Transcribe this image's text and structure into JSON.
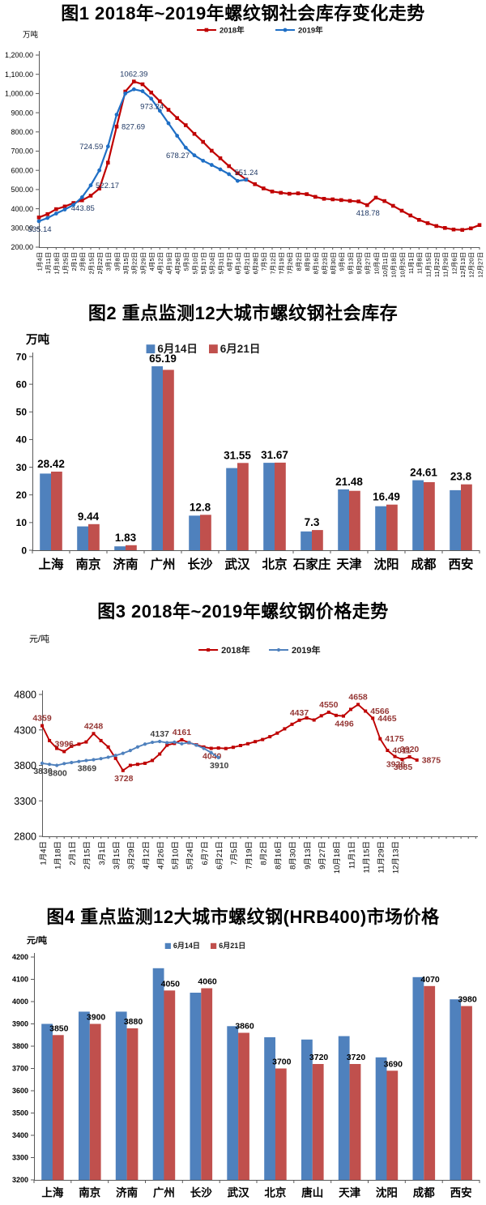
{
  "chart_data": [
    {
      "name": "inventory-trend",
      "type": "line",
      "title": "图1 2018年~2019年螺纹钢社会库存变化走势",
      "unit": "万吨",
      "legend_position": "top",
      "ylim": [
        200,
        1200
      ],
      "ytick_labels": [
        "200.00",
        "300.00",
        "400.00",
        "500.00",
        "600.00",
        "700.00",
        "800.00",
        "900.00",
        "1,000.00",
        "1,100.00",
        "1,200.00"
      ],
      "n_points": 52,
      "label_stride": 1,
      "x_labels": [
        "1月4日",
        "1月11日",
        "1月18日",
        "1月25日",
        "2月1日",
        "2月8日",
        "2月15日",
        "2月22日",
        "3月1日",
        "3月8日",
        "3月15日",
        "3月22日",
        "3月29日",
        "4月5日",
        "4月12日",
        "4月19日",
        "4月26日",
        "5月3日",
        "5月10日",
        "5月17日",
        "5月24日",
        "5月31日",
        "6月7日",
        "6月14日",
        "6月21日",
        "6月28日",
        "7月5日",
        "7月12日",
        "7月19日",
        "7月26日",
        "8月2日",
        "8月9日",
        "8月16日",
        "8月23日",
        "8月30日",
        "9月6日",
        "9月13日",
        "9月20日",
        "9月27日",
        "10月4日",
        "10月11日",
        "10月18日",
        "10月25日",
        "11月1日",
        "11月8日",
        "11月15日",
        "11月22日",
        "11月29日",
        "12月6日",
        "12月13日",
        "12月20日",
        "12月27日"
      ],
      "series": [
        {
          "name": "2018年",
          "color": "#C00000",
          "marker": "square",
          "values": [
            355,
            372,
            398,
            412,
            430,
            443.85,
            468,
            505,
            640,
            827.69,
            1010,
            1062.39,
            1048,
            1005,
            960,
            915,
            872,
            835,
            790,
            748,
            702,
            663,
            622,
            585,
            552,
            528,
            506,
            490,
            483,
            478,
            480,
            476,
            462,
            452,
            449,
            445,
            441,
            438,
            418.78,
            458,
            440,
            415,
            390,
            365,
            342,
            325,
            310,
            300,
            292,
            290,
            298,
            315
          ],
          "point_labels": [
            {
              "i": 5,
              "t": "443.85",
              "pos": "below"
            },
            {
              "i": 9,
              "t": "827.69",
              "pos": "right"
            },
            {
              "i": 11,
              "t": "1062.39",
              "pos": "above"
            },
            {
              "i": 38,
              "t": "418.78",
              "pos": "below"
            }
          ]
        },
        {
          "name": "2019年",
          "color": "#1F6FC5",
          "marker": "circle",
          "values": [
            335.14,
            352,
            375,
            396,
            420,
            460,
            522.17,
            600,
            724.59,
            890,
            1000,
            1022,
            1012,
            973.24,
            910,
            845,
            780,
            718,
            678.27,
            650,
            628,
            605,
            580,
            545,
            551.24
          ],
          "point_labels": [
            {
              "i": 0,
              "t": "335.14",
              "pos": "below"
            },
            {
              "i": 6,
              "t": "522.17",
              "pos": "right"
            },
            {
              "i": 8,
              "t": "724.59",
              "pos": "left"
            },
            {
              "i": 13,
              "t": "973.24",
              "pos": "below"
            },
            {
              "i": 18,
              "t": "678.27",
              "pos": "left"
            },
            {
              "i": 24,
              "t": "551.24",
              "pos": "above"
            }
          ]
        }
      ]
    },
    {
      "name": "city-inventory",
      "type": "bar",
      "title": "图2 重点监测12大城市螺纹钢社会库存",
      "unit": "万吨",
      "legend_position": "top",
      "ylim": [
        0,
        70
      ],
      "ytick_labels": [
        "0",
        "10",
        "20",
        "30",
        "40",
        "50",
        "60",
        "70"
      ],
      "categories": [
        "上海",
        "南京",
        "济南",
        "广州",
        "长沙",
        "武汉",
        "北京",
        "石家庄",
        "天津",
        "沈阳",
        "成都",
        "西安"
      ],
      "series": [
        {
          "name": "6月14日",
          "color": "#4F81BD",
          "values": [
            27.7,
            8.6,
            1.4,
            66.5,
            12.5,
            29.7,
            31.6,
            6.8,
            22.0,
            15.9,
            25.3,
            21.7
          ]
        },
        {
          "name": "6月21日",
          "color": "#C0504D",
          "values": [
            28.42,
            9.44,
            1.83,
            65.19,
            12.8,
            31.55,
            31.67,
            7.3,
            21.48,
            16.49,
            24.61,
            23.8
          ]
        }
      ],
      "bar_labels": [
        "28.42",
        "9.44",
        "1.83",
        "65.19",
        "12.8",
        "31.55",
        "31.67",
        "7.3",
        "21.48",
        "16.49",
        "24.61",
        "23.8"
      ],
      "label_anchor": "group"
    },
    {
      "name": "price-trend",
      "type": "line",
      "title": "图3 2018年~2019年螺纹钢价格走势",
      "unit": "元/吨",
      "legend_position": "top",
      "ylim": [
        2800,
        4800
      ],
      "ytick_labels": [
        "2800",
        "3300",
        "3800",
        "4300",
        "4800"
      ],
      "n_points": 52,
      "label_stride": 2,
      "x_labels": [
        "1月4日",
        "1月18日",
        "2月1日",
        "2月15日",
        "3月1日",
        "3月15日",
        "3月29日",
        "4月12日",
        "4月26日",
        "5月10日",
        "5月24日",
        "6月7日",
        "6月21日",
        "7月5日",
        "7月19日",
        "8月2日",
        "8月16日",
        "8月30日",
        "9月13日",
        "9月27日",
        "10月18日",
        "11月1日",
        "11月15日",
        "11月29日",
        "12月13日"
      ],
      "series": [
        {
          "name": "2018年",
          "color": "#BE0000",
          "marker": "square",
          "values": [
            4359,
            4150,
            4040,
            3996,
            4070,
            4100,
            4130,
            4248,
            4150,
            4060,
            3900,
            3728,
            3800,
            3815,
            3830,
            3870,
            3960,
            4085,
            4110,
            4161,
            4120,
            4090,
            4060,
            4040,
            4045,
            4038,
            4055,
            4080,
            4105,
            4135,
            4165,
            4205,
            4255,
            4315,
            4380,
            4437,
            4470,
            4440,
            4500,
            4550,
            4505,
            4496,
            4590,
            4658,
            4566,
            4465,
            4175,
            4011,
            3926,
            3885,
            3920,
            3875
          ],
          "point_labels": [
            {
              "i": 0,
              "t": "4359",
              "pos": "above"
            },
            {
              "i": 3,
              "t": "3996",
              "pos": "above"
            },
            {
              "i": 7,
              "t": "4248",
              "pos": "above"
            },
            {
              "i": 11,
              "t": "3728",
              "pos": "below"
            },
            {
              "i": 19,
              "t": "4161",
              "pos": "above"
            },
            {
              "i": 23,
              "t": "4040",
              "pos": "below"
            },
            {
              "i": 35,
              "t": "4437",
              "pos": "above"
            },
            {
              "i": 39,
              "t": "4550",
              "pos": "above"
            },
            {
              "i": 41,
              "t": "4496",
              "pos": "below"
            },
            {
              "i": 43,
              "t": "4658",
              "pos": "above"
            },
            {
              "i": 44,
              "t": "4566",
              "pos": "right"
            },
            {
              "i": 45,
              "t": "4465",
              "pos": "right"
            },
            {
              "i": 46,
              "t": "4175",
              "pos": "right"
            },
            {
              "i": 47,
              "t": "4011",
              "pos": "right"
            },
            {
              "i": 48,
              "t": "3926",
              "pos": "below"
            },
            {
              "i": 49,
              "t": "3885",
              "pos": "below"
            },
            {
              "i": 50,
              "t": "3920",
              "pos": "above"
            },
            {
              "i": 51,
              "t": "3875",
              "pos": "right"
            }
          ]
        },
        {
          "name": "2019年",
          "color": "#4F81BD",
          "marker": "circle",
          "label_color": "#404040",
          "values": [
            3830,
            3815,
            3800,
            3825,
            3840,
            3855,
            3869,
            3880,
            3895,
            3915,
            3940,
            3970,
            4010,
            4060,
            4100,
            4125,
            4137,
            4120,
            4128,
            4105,
            4122,
            4085,
            4040,
            3980,
            3910
          ],
          "point_labels": [
            {
              "i": 0,
              "t": "3830",
              "pos": "below"
            },
            {
              "i": 2,
              "t": "3800",
              "pos": "below"
            },
            {
              "i": 6,
              "t": "3869",
              "pos": "below"
            },
            {
              "i": 16,
              "t": "4137",
              "pos": "above"
            },
            {
              "i": 24,
              "t": "3910",
              "pos": "below"
            }
          ]
        }
      ]
    },
    {
      "name": "city-price",
      "type": "bar",
      "title": "图4 重点监测12大城市螺纹钢(HRB400)市场价格",
      "unit": "元/吨",
      "legend_position": "top",
      "ylim": [
        3200,
        4200
      ],
      "ytick_labels": [
        "3200",
        "3300",
        "3400",
        "3500",
        "3600",
        "3700",
        "3800",
        "3900",
        "4000",
        "4100",
        "4200"
      ],
      "categories": [
        "上海",
        "南京",
        "济南",
        "广州",
        "长沙",
        "武汉",
        "北京",
        "唐山",
        "天津",
        "沈阳",
        "成都",
        "西安"
      ],
      "series": [
        {
          "name": "6月14日",
          "color": "#4F81BD",
          "values": [
            3900,
            3955,
            3955,
            4150,
            4040,
            3890,
            3840,
            3830,
            3845,
            3750,
            4110,
            4010
          ]
        },
        {
          "name": "6月21日",
          "color": "#C0504D",
          "values": [
            3850,
            3900,
            3880,
            4050,
            4060,
            3860,
            3700,
            3720,
            3720,
            3690,
            4070,
            3980
          ]
        }
      ],
      "bar_labels": [
        "3850",
        "3900",
        "3880",
        "4050",
        "4060",
        "3860",
        "3700",
        "3720",
        "3720",
        "3690",
        "4070",
        "3980"
      ],
      "label_anchor": "bar2"
    }
  ]
}
